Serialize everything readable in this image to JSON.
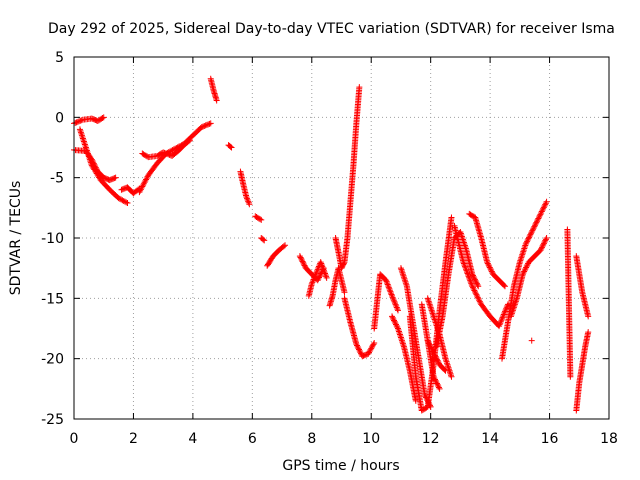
{
  "chart_data": {
    "type": "scatter",
    "title": "Day 292 of 2025, Sidereal Day-to-day VTEC variation (SDTVAR) for receiver Isma",
    "xlabel": "GPS time / hours",
    "ylabel": "SDTVAR / TECUs",
    "xlim": [
      0,
      18
    ],
    "ylim": [
      -25,
      5
    ],
    "xticks": [
      0,
      2,
      4,
      6,
      8,
      10,
      12,
      14,
      16,
      18
    ],
    "yticks": [
      5,
      0,
      -5,
      -10,
      -15,
      -20,
      -25
    ],
    "xtick_labels": [
      "0",
      "2",
      "4",
      "6",
      "8",
      "10",
      "12",
      "14",
      "16",
      "18"
    ],
    "ytick_labels": [
      "5",
      "0",
      "-5",
      "-10",
      "-15",
      "-20",
      "-25"
    ],
    "grid": true,
    "marker": "plus",
    "color": "#ff0000",
    "series": [
      {
        "name": "s1",
        "x": [
          0.0,
          0.3,
          0.6,
          0.8,
          1.0
        ],
        "y": [
          -0.5,
          -0.2,
          -0.1,
          -0.3,
          0.0
        ]
      },
      {
        "name": "s2",
        "x": [
          0.0,
          0.4,
          0.6,
          0.8,
          1.0,
          1.2,
          1.4
        ],
        "y": [
          -2.7,
          -2.8,
          -3.5,
          -4.5,
          -5.0,
          -5.2,
          -5.0
        ]
      },
      {
        "name": "s3",
        "x": [
          0.2,
          0.4,
          0.6,
          0.9,
          1.2,
          1.5,
          1.8
        ],
        "y": [
          -1.0,
          -2.5,
          -4.0,
          -5.2,
          -6.0,
          -6.7,
          -7.1
        ]
      },
      {
        "name": "s4",
        "x": [
          1.6,
          1.8,
          2.0,
          2.2
        ],
        "y": [
          -6.0,
          -5.8,
          -6.3,
          -5.9
        ]
      },
      {
        "name": "s5",
        "x": [
          2.2,
          2.5,
          2.8,
          3.1,
          3.4,
          3.7,
          4.0,
          4.3,
          4.6
        ],
        "y": [
          -6.2,
          -4.8,
          -3.8,
          -3.0,
          -2.6,
          -2.2,
          -1.5,
          -0.8,
          -0.5
        ]
      },
      {
        "name": "s6",
        "x": [
          2.3,
          2.5,
          2.8,
          3.0,
          3.3,
          3.5,
          3.7,
          3.9
        ],
        "y": [
          -3.0,
          -3.3,
          -3.2,
          -2.9,
          -3.2,
          -2.8,
          -2.3,
          -1.9
        ]
      },
      {
        "name": "s7",
        "x": [
          4.6,
          4.7,
          4.8
        ],
        "y": [
          3.2,
          2.2,
          1.4
        ]
      },
      {
        "name": "s8",
        "x": [
          5.2,
          5.3
        ],
        "y": [
          -2.3,
          -2.5
        ]
      },
      {
        "name": "s9",
        "x": [
          5.6,
          5.7,
          5.8,
          5.9
        ],
        "y": [
          -4.5,
          -5.6,
          -6.6,
          -7.2
        ]
      },
      {
        "name": "s10",
        "x": [
          6.1,
          6.3
        ],
        "y": [
          -8.2,
          -8.5
        ]
      },
      {
        "name": "s11",
        "x": [
          6.3,
          6.4
        ],
        "y": [
          -10.0,
          -10.2
        ]
      },
      {
        "name": "s12",
        "x": [
          6.5,
          6.7,
          6.9,
          7.1
        ],
        "y": [
          -12.3,
          -11.5,
          -11.0,
          -10.6
        ]
      },
      {
        "name": "s13",
        "x": [
          7.6,
          7.8,
          8.0,
          8.2,
          8.4
        ],
        "y": [
          -11.5,
          -12.5,
          -13.0,
          -13.5,
          -12.5
        ]
      },
      {
        "name": "s14",
        "x": [
          7.9,
          8.0,
          8.2,
          8.3,
          8.5
        ],
        "y": [
          -14.8,
          -13.8,
          -12.6,
          -12.0,
          -13.3
        ]
      },
      {
        "name": "s15",
        "x": [
          8.6,
          8.7,
          8.8,
          8.9,
          9.0,
          9.1
        ],
        "y": [
          -15.6,
          -14.8,
          -13.5,
          -12.5,
          -13.5,
          -14.5
        ]
      },
      {
        "name": "s16",
        "x": [
          8.8,
          8.9,
          9.0,
          9.1,
          9.2,
          9.3,
          9.4,
          9.5,
          9.6
        ],
        "y": [
          -10.0,
          -11.2,
          -12.5,
          -12.0,
          -10.0,
          -7.0,
          -4.0,
          -0.5,
          2.5
        ]
      },
      {
        "name": "s17",
        "x": [
          9.1,
          9.3,
          9.5,
          9.7,
          9.9,
          10.1
        ],
        "y": [
          -15.0,
          -17.0,
          -18.8,
          -19.8,
          -19.6,
          -18.7
        ]
      },
      {
        "name": "s18",
        "x": [
          10.1,
          10.3,
          10.5,
          10.7,
          10.9
        ],
        "y": [
          -17.5,
          -13.0,
          -13.5,
          -14.8,
          -16.0
        ]
      },
      {
        "name": "s19",
        "x": [
          10.7,
          10.9,
          11.1,
          11.3,
          11.5
        ],
        "y": [
          -16.5,
          -17.5,
          -19.0,
          -21.0,
          -23.5
        ]
      },
      {
        "name": "s20",
        "x": [
          11.0,
          11.2,
          11.4,
          11.6,
          11.8,
          12.0
        ],
        "y": [
          -12.5,
          -14.0,
          -17.0,
          -20.0,
          -23.0,
          -24.0
        ]
      },
      {
        "name": "s21",
        "x": [
          11.3,
          11.5,
          11.7,
          11.9,
          12.1,
          12.3,
          12.5,
          12.7
        ],
        "y": [
          -16.5,
          -21.5,
          -24.3,
          -24.0,
          -20.5,
          -16.0,
          -12.0,
          -8.3
        ]
      },
      {
        "name": "s22",
        "x": [
          11.7,
          11.9,
          12.1,
          12.3
        ],
        "y": [
          -15.5,
          -18.5,
          -21.5,
          -22.5
        ]
      },
      {
        "name": "s23",
        "x": [
          11.9,
          12.1,
          12.3,
          12.5,
          12.7
        ],
        "y": [
          -15.0,
          -16.5,
          -18.0,
          -20.0,
          -21.5
        ]
      },
      {
        "name": "s24",
        "x": [
          11.9,
          12.1,
          12.3,
          12.5
        ],
        "y": [
          -18.5,
          -19.5,
          -20.5,
          -21.0
        ]
      },
      {
        "name": "s25",
        "x": [
          12.2,
          12.4,
          12.6,
          12.8,
          13.0,
          13.2,
          13.4,
          13.6
        ],
        "y": [
          -19.0,
          -16.5,
          -13.0,
          -10.0,
          -9.5,
          -11.0,
          -13.0,
          -14.0
        ]
      },
      {
        "name": "s26",
        "x": [
          12.8,
          13.1,
          13.4,
          13.7,
          14.0,
          14.3,
          14.6
        ],
        "y": [
          -9.0,
          -12.0,
          -14.0,
          -15.5,
          -16.5,
          -17.3,
          -15.5
        ]
      },
      {
        "name": "s27",
        "x": [
          13.3,
          13.5,
          13.7,
          13.9,
          14.1,
          14.3,
          14.5
        ],
        "y": [
          -8.0,
          -8.3,
          -10.0,
          -12.0,
          -13.0,
          -13.5,
          -14.0
        ]
      },
      {
        "name": "s28",
        "x": [
          14.4,
          14.6,
          14.8,
          15.0,
          15.2,
          15.4,
          15.6,
          15.9
        ],
        "y": [
          -20.0,
          -17.0,
          -14.0,
          -12.0,
          -10.5,
          -9.5,
          -8.5,
          -7.0
        ]
      },
      {
        "name": "s29",
        "x": [
          14.7,
          14.9,
          15.1,
          15.3,
          15.5,
          15.7,
          15.9
        ],
        "y": [
          -16.5,
          -15.0,
          -13.0,
          -12.0,
          -11.5,
          -11.0,
          -10.0
        ]
      },
      {
        "name": "s30",
        "x": [
          15.4
        ],
        "y": [
          -18.5
        ]
      },
      {
        "name": "s31",
        "x": [
          16.6,
          16.7
        ],
        "y": [
          -9.3,
          -21.5
        ]
      },
      {
        "name": "s32",
        "x": [
          16.9,
          17.0,
          17.1,
          17.2,
          17.3
        ],
        "y": [
          -24.3,
          -22.0,
          -20.5,
          -19.0,
          -17.8
        ]
      },
      {
        "name": "s33",
        "x": [
          16.9,
          17.0,
          17.1,
          17.2,
          17.3
        ],
        "y": [
          -11.5,
          -13.0,
          -14.5,
          -15.5,
          -16.5
        ]
      }
    ]
  }
}
